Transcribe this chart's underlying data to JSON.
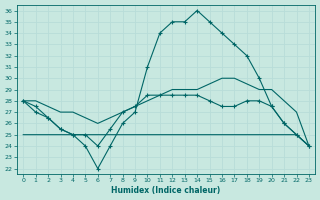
{
  "xlabel": "Humidex (Indice chaleur)",
  "xlim": [
    -0.5,
    23.5
  ],
  "ylim": [
    21.5,
    36.5
  ],
  "xticks": [
    0,
    1,
    2,
    3,
    4,
    5,
    6,
    7,
    8,
    9,
    10,
    11,
    12,
    13,
    14,
    15,
    16,
    17,
    18,
    19,
    20,
    21,
    22,
    23
  ],
  "yticks": [
    22,
    23,
    24,
    25,
    26,
    27,
    28,
    29,
    30,
    31,
    32,
    33,
    34,
    35,
    36
  ],
  "background_color": "#c8e8e0",
  "line_color": "#006666",
  "grid_color": "#b8ddd8",
  "lines": [
    {
      "x": [
        0,
        1,
        2,
        3,
        4,
        5,
        6,
        7,
        8,
        9,
        10,
        11,
        12,
        13,
        14,
        15,
        16,
        17,
        18,
        19,
        20,
        21,
        22,
        23
      ],
      "y": [
        28,
        27.5,
        26.5,
        25.5,
        25,
        24,
        22,
        24,
        26,
        27,
        31,
        34,
        35,
        35,
        36,
        35,
        34,
        33,
        32,
        30,
        27.5,
        26,
        25,
        24
      ],
      "has_markers": true
    },
    {
      "x": [
        0,
        1,
        2,
        3,
        4,
        5,
        6,
        7,
        8,
        9,
        10,
        11,
        12,
        13,
        14,
        15,
        16,
        17,
        18,
        19,
        20,
        21,
        22,
        23
      ],
      "y": [
        28,
        28,
        27.5,
        27,
        27,
        26.5,
        26,
        26.5,
        27,
        27.5,
        28,
        28.5,
        29,
        29,
        29,
        29.5,
        30,
        30,
        29.5,
        29,
        29,
        28,
        27,
        24
      ],
      "has_markers": false
    },
    {
      "x": [
        0,
        1,
        2,
        3,
        4,
        5,
        6,
        7,
        8,
        9,
        10,
        11,
        12,
        13,
        14,
        15,
        16,
        17,
        18,
        19,
        20,
        21,
        22,
        23
      ],
      "y": [
        25,
        25,
        25,
        25,
        25,
        25,
        25,
        25,
        25,
        25,
        25,
        25,
        25,
        25,
        25,
        25,
        25,
        25,
        25,
        25,
        25,
        25,
        25,
        24
      ],
      "has_markers": false
    },
    {
      "x": [
        0,
        1,
        2,
        3,
        4,
        5,
        6,
        7,
        8,
        9,
        10,
        11,
        12,
        13,
        14,
        15,
        16,
        17,
        18,
        19,
        20,
        21,
        22,
        23
      ],
      "y": [
        28,
        27,
        26.5,
        25.5,
        25,
        25,
        24,
        25.5,
        27,
        27.5,
        28.5,
        28.5,
        28.5,
        28.5,
        28.5,
        28,
        27.5,
        27.5,
        28,
        28,
        27.5,
        26,
        25,
        24
      ],
      "has_markers": true
    }
  ]
}
